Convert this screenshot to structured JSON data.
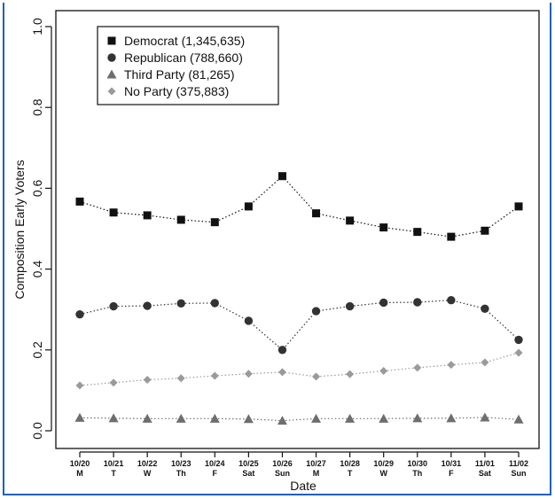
{
  "chart_data": {
    "type": "line",
    "title": "",
    "xlabel": "Date",
    "ylabel": "Composition Early Voters",
    "ylim": [
      0,
      1
    ],
    "yticks": [
      "0.0",
      "0.2",
      "0.4",
      "0.6",
      "0.8",
      "1.0"
    ],
    "categories": [
      "10/20",
      "10/21",
      "10/22",
      "10/23",
      "10/24",
      "10/25",
      "10/26",
      "10/27",
      "10/28",
      "10/29",
      "10/30",
      "10/31",
      "11/01",
      "11/02"
    ],
    "days": [
      "M",
      "T",
      "W",
      "Th",
      "F",
      "Sat",
      "Sun",
      "M",
      "T",
      "W",
      "Th",
      "F",
      "Sat",
      "Sun"
    ],
    "legend_position": "top-left",
    "grid": false,
    "series": [
      {
        "name": "Democrat (1,345,635)",
        "marker": "square",
        "color": "#111111",
        "values": [
          0.567,
          0.54,
          0.533,
          0.522,
          0.516,
          0.555,
          0.63,
          0.538,
          0.52,
          0.503,
          0.492,
          0.48,
          0.495,
          0.555
        ]
      },
      {
        "name": "Republican (788,660)",
        "marker": "circle",
        "color": "#333333",
        "values": [
          0.288,
          0.308,
          0.309,
          0.315,
          0.316,
          0.272,
          0.2,
          0.296,
          0.308,
          0.317,
          0.318,
          0.323,
          0.302,
          0.225
        ]
      },
      {
        "name": "Third Party (81,265)",
        "marker": "triangle",
        "color": "#6e6e6e",
        "values": [
          0.032,
          0.031,
          0.03,
          0.03,
          0.03,
          0.029,
          0.025,
          0.03,
          0.03,
          0.03,
          0.031,
          0.031,
          0.033,
          0.028
        ]
      },
      {
        "name": "No Party (375,883)",
        "marker": "diamond",
        "color": "#9a9a9a",
        "values": [
          0.112,
          0.119,
          0.126,
          0.13,
          0.136,
          0.141,
          0.145,
          0.134,
          0.14,
          0.148,
          0.156,
          0.163,
          0.169,
          0.193
        ]
      }
    ]
  }
}
